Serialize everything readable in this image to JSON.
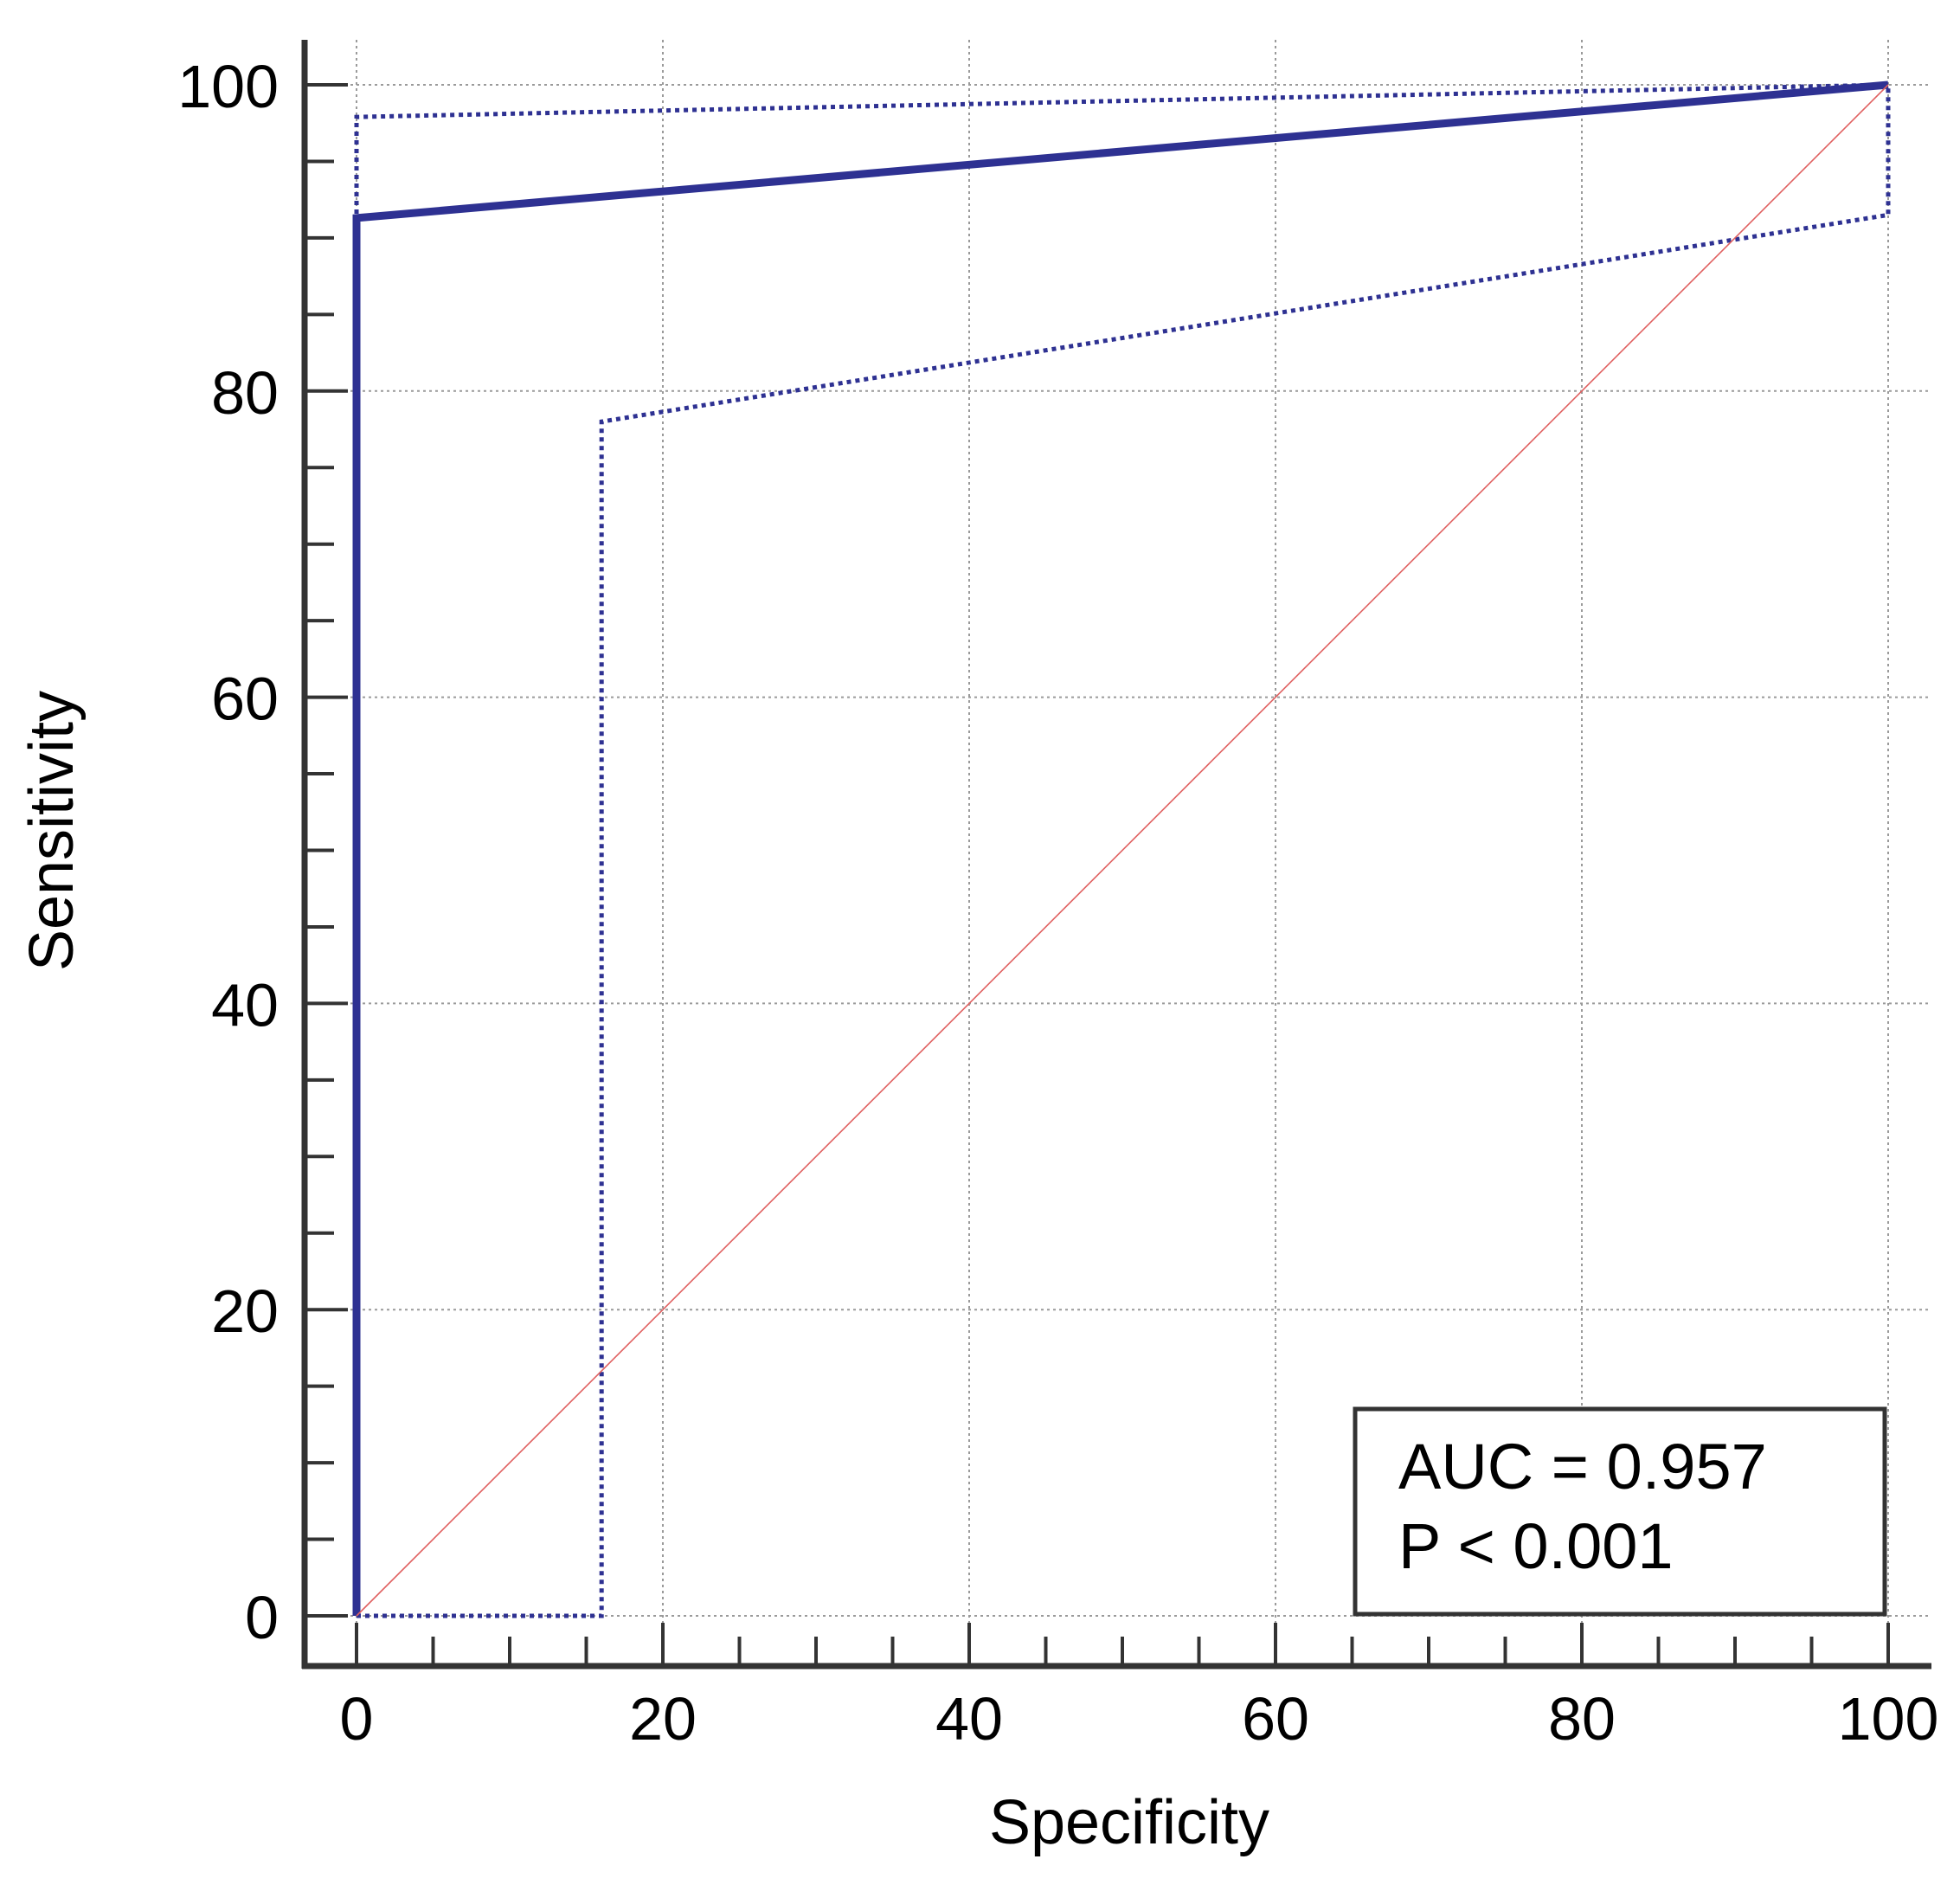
{
  "chart_data": {
    "type": "line",
    "title": "",
    "xlabel": "Specificity",
    "ylabel": "Sensitivity",
    "xlim": [
      0,
      100
    ],
    "ylim": [
      0,
      100
    ],
    "x_ticks": [
      0,
      20,
      40,
      60,
      80,
      100
    ],
    "y_ticks": [
      0,
      20,
      40,
      60,
      80,
      100
    ],
    "x_tick_labels": [
      "0",
      "20",
      "40",
      "60",
      "80",
      "100"
    ],
    "y_tick_labels": [
      "0",
      "20",
      "40",
      "60",
      "80",
      "100"
    ],
    "grid": true,
    "series": [
      {
        "style": "solid",
        "color": "#2e3192",
        "points": [
          [
            0,
            0
          ],
          [
            0,
            91.3
          ],
          [
            100,
            100
          ]
        ]
      },
      {
        "style": "dotted",
        "color": "#2e3192",
        "points": [
          [
            0,
            0
          ],
          [
            0,
            97.9
          ],
          [
            100,
            100
          ]
        ]
      },
      {
        "style": "dotted",
        "color": "#2e3192",
        "points": [
          [
            0,
            0
          ],
          [
            16,
            0
          ],
          [
            16,
            78
          ],
          [
            100,
            91.5
          ],
          [
            100,
            100
          ]
        ]
      },
      {
        "style": "reference",
        "color": "#e06060",
        "points": [
          [
            0,
            0
          ],
          [
            100,
            100
          ]
        ]
      }
    ],
    "annotation": {
      "lines": [
        "AUC = 0.957",
        "P < 0.001"
      ],
      "placement": "bottom-right"
    }
  }
}
